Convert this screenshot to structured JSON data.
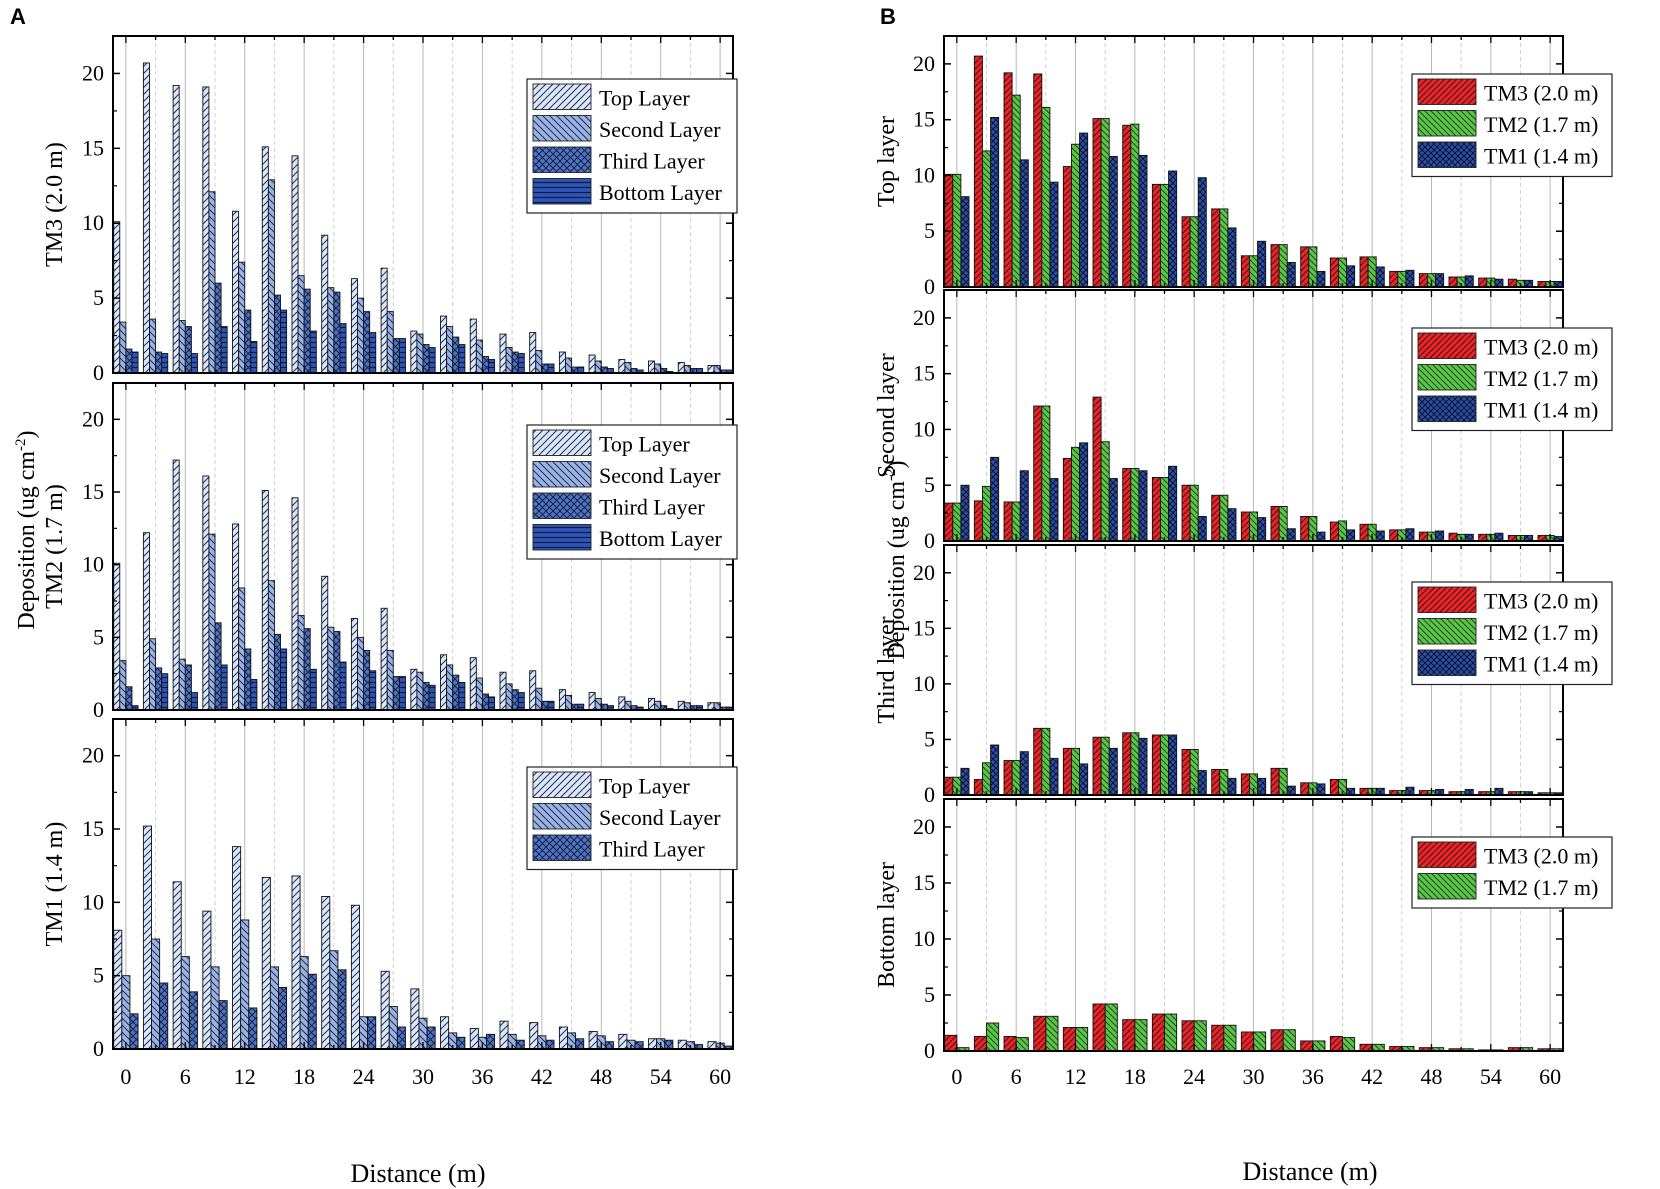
{
  "panels": [
    {
      "letter": "A",
      "ylabel_main": "Deposition (ug cm",
      "ylabel_sup": "-2",
      "ylabel_end": ")",
      "xlabel": "Distance (m)"
    },
    {
      "letter": "B",
      "ylabel_main": "Deposition (ug cm",
      "ylabel_sup": "-2",
      "ylabel_end": ")",
      "xlabel": "Distance (m)"
    }
  ],
  "chart_data": [
    {
      "type": "bar",
      "panel": "A",
      "xlabel": "Distance (m)",
      "xticks": [
        "0",
        "6",
        "12",
        "18",
        "24",
        "30",
        "36",
        "42",
        "48",
        "54",
        "60"
      ],
      "yticks": [
        "0",
        "5",
        "10",
        "15",
        "20"
      ],
      "categories": [
        0,
        3,
        6,
        9,
        12,
        15,
        18,
        21,
        24,
        27,
        30,
        33,
        36,
        39,
        42,
        45,
        48,
        51,
        54,
        57,
        60
      ],
      "colors": {
        "Top Layer": "#dce8f8",
        "Second Layer": "#9bb3e0",
        "Third Layer": "#4f74c4",
        "Bottom Layer": "#2d55b8"
      },
      "subplots": [
        {
          "ylabel": "TM3 (2.0 m)",
          "ylim": [
            0,
            22.5
          ],
          "series": [
            {
              "name": "Top Layer",
              "values": [
                10.1,
                20.7,
                19.2,
                19.1,
                10.8,
                15.1,
                14.5,
                9.2,
                6.3,
                7.0,
                2.8,
                3.8,
                3.6,
                2.6,
                2.7,
                1.4,
                1.2,
                0.9,
                0.8,
                0.7,
                0.5
              ]
            },
            {
              "name": "Second Layer",
              "values": [
                3.4,
                3.6,
                3.5,
                12.1,
                7.4,
                12.9,
                6.5,
                5.7,
                5.0,
                4.1,
                2.6,
                3.1,
                2.2,
                1.7,
                1.5,
                1.0,
                0.8,
                0.7,
                0.6,
                0.5,
                0.5
              ]
            },
            {
              "name": "Third Layer",
              "values": [
                1.6,
                1.4,
                3.1,
                6.0,
                4.2,
                5.2,
                5.6,
                5.4,
                4.1,
                2.3,
                1.9,
                2.4,
                1.1,
                1.4,
                0.6,
                0.4,
                0.4,
                0.3,
                0.3,
                0.3,
                0.2
              ]
            },
            {
              "name": "Bottom Layer",
              "values": [
                1.4,
                1.3,
                1.3,
                3.1,
                2.1,
                4.2,
                2.8,
                3.3,
                2.7,
                2.3,
                1.7,
                1.9,
                0.9,
                1.3,
                0.6,
                0.4,
                0.3,
                0.2,
                0.1,
                0.3,
                0.2
              ]
            }
          ],
          "legend": [
            "Top Layer",
            "Second Layer",
            "Third Layer",
            "Bottom Layer"
          ]
        },
        {
          "ylabel": "TM2 (1.7 m)",
          "ylim": [
            0,
            22.5
          ],
          "series": [
            {
              "name": "Top Layer",
              "values": [
                10.1,
                12.2,
                17.2,
                16.1,
                12.8,
                15.1,
                14.6,
                9.2,
                6.3,
                7.0,
                2.8,
                3.8,
                3.6,
                2.6,
                2.7,
                1.4,
                1.2,
                0.9,
                0.8,
                0.6,
                0.5
              ]
            },
            {
              "name": "Second Layer",
              "values": [
                3.4,
                4.9,
                3.5,
                12.1,
                8.4,
                8.9,
                6.5,
                5.7,
                5.0,
                4.1,
                2.6,
                3.1,
                2.2,
                1.8,
                1.5,
                1.0,
                0.8,
                0.6,
                0.6,
                0.5,
                0.5
              ]
            },
            {
              "name": "Third Layer",
              "values": [
                1.6,
                2.9,
                3.1,
                6.0,
                4.2,
                5.2,
                5.6,
                5.4,
                4.1,
                2.3,
                1.9,
                2.4,
                1.1,
                1.4,
                0.6,
                0.4,
                0.4,
                0.3,
                0.3,
                0.3,
                0.2
              ]
            },
            {
              "name": "Bottom Layer",
              "values": [
                0.3,
                2.5,
                1.2,
                3.1,
                2.1,
                4.2,
                2.8,
                3.3,
                2.7,
                2.3,
                1.7,
                1.9,
                0.9,
                1.2,
                0.6,
                0.4,
                0.3,
                0.2,
                0.1,
                0.3,
                0.2
              ]
            }
          ],
          "legend": [
            "Top Layer",
            "Second Layer",
            "Third Layer",
            "Bottom Layer"
          ]
        },
        {
          "ylabel": "TM1 (1.4 m)",
          "ylim": [
            0,
            22.5
          ],
          "series": [
            {
              "name": "Top Layer",
              "values": [
                8.1,
                15.2,
                11.4,
                9.4,
                13.8,
                11.7,
                11.8,
                10.4,
                9.8,
                5.3,
                4.1,
                2.2,
                1.4,
                1.9,
                1.8,
                1.5,
                1.2,
                1.0,
                0.7,
                0.6,
                0.5
              ]
            },
            {
              "name": "Second Layer",
              "values": [
                5.0,
                7.5,
                6.3,
                5.6,
                8.8,
                5.6,
                6.3,
                6.7,
                2.2,
                2.9,
                2.1,
                1.1,
                0.8,
                1.0,
                0.9,
                1.1,
                0.9,
                0.6,
                0.7,
                0.5,
                0.4
              ]
            },
            {
              "name": "Third Layer",
              "values": [
                2.4,
                4.5,
                3.9,
                3.3,
                2.8,
                4.2,
                5.1,
                5.4,
                2.2,
                1.5,
                1.5,
                0.8,
                1.0,
                0.6,
                0.6,
                0.7,
                0.5,
                0.5,
                0.6,
                0.3,
                0.2
              ]
            }
          ],
          "legend": [
            "Top Layer",
            "Second Layer",
            "Third Layer"
          ]
        }
      ]
    },
    {
      "type": "bar",
      "panel": "B",
      "xlabel": "Distance (m)",
      "xticks": [
        "0",
        "6",
        "12",
        "18",
        "24",
        "30",
        "36",
        "42",
        "48",
        "54",
        "60"
      ],
      "yticks": [
        "0",
        "5",
        "10",
        "15",
        "20"
      ],
      "categories": [
        0,
        3,
        6,
        9,
        12,
        15,
        18,
        21,
        24,
        27,
        30,
        33,
        36,
        39,
        42,
        45,
        48,
        51,
        54,
        57,
        60
      ],
      "colors": {
        "TM3 (2.0 m)": "#e8262a",
        "TM2 (1.7 m)": "#5cc64a",
        "TM1 (1.4 m)": "#2c4fa8"
      },
      "subplots": [
        {
          "ylabel": "Top layer",
          "ylim": [
            0,
            22.5
          ],
          "series": [
            {
              "name": "TM3 (2.0 m)",
              "values": [
                10.1,
                20.7,
                19.2,
                19.1,
                10.8,
                15.1,
                14.5,
                9.2,
                6.3,
                7.0,
                2.8,
                3.8,
                3.6,
                2.6,
                2.7,
                1.4,
                1.2,
                0.9,
                0.8,
                0.7,
                0.5
              ]
            },
            {
              "name": "TM2 (1.7 m)",
              "values": [
                10.1,
                12.2,
                17.2,
                16.1,
                12.8,
                15.1,
                14.6,
                9.2,
                6.3,
                7.0,
                2.8,
                3.8,
                3.6,
                2.6,
                2.7,
                1.4,
                1.2,
                0.9,
                0.8,
                0.6,
                0.5
              ]
            },
            {
              "name": "TM1 (1.4 m)",
              "values": [
                8.1,
                15.2,
                11.4,
                9.4,
                13.8,
                11.7,
                11.8,
                10.4,
                9.8,
                5.3,
                4.1,
                2.2,
                1.4,
                1.9,
                1.8,
                1.5,
                1.2,
                1.0,
                0.7,
                0.6,
                0.5
              ]
            }
          ],
          "legend": [
            "TM3 (2.0 m)",
            "TM2 (1.7 m)",
            "TM1 (1.4 m)"
          ]
        },
        {
          "ylabel": "Second layer",
          "ylim": [
            0,
            22.5
          ],
          "series": [
            {
              "name": "TM3 (2.0 m)",
              "values": [
                3.4,
                3.6,
                3.5,
                12.1,
                7.4,
                12.9,
                6.5,
                5.7,
                5.0,
                4.1,
                2.6,
                3.1,
                2.2,
                1.7,
                1.5,
                1.0,
                0.8,
                0.7,
                0.6,
                0.5,
                0.5
              ]
            },
            {
              "name": "TM2 (1.7 m)",
              "values": [
                3.4,
                4.9,
                3.5,
                12.1,
                8.4,
                8.9,
                6.5,
                5.7,
                5.0,
                4.1,
                2.6,
                3.1,
                2.2,
                1.8,
                1.5,
                1.0,
                0.8,
                0.6,
                0.6,
                0.5,
                0.5
              ]
            },
            {
              "name": "TM1 (1.4 m)",
              "values": [
                5.0,
                7.5,
                6.3,
                5.6,
                8.8,
                5.6,
                6.3,
                6.7,
                2.2,
                2.9,
                2.1,
                1.1,
                0.8,
                1.0,
                0.9,
                1.1,
                0.9,
                0.6,
                0.7,
                0.5,
                0.4
              ]
            }
          ],
          "legend": [
            "TM3 (2.0 m)",
            "TM2 (1.7 m)",
            "TM1 (1.4 m)"
          ]
        },
        {
          "ylabel": "Third layer",
          "ylim": [
            0,
            22.5
          ],
          "series": [
            {
              "name": "TM3 (2.0 m)",
              "values": [
                1.6,
                1.4,
                3.1,
                6.0,
                4.2,
                5.2,
                5.6,
                5.4,
                4.1,
                2.3,
                1.9,
                2.4,
                1.1,
                1.4,
                0.6,
                0.4,
                0.4,
                0.3,
                0.3,
                0.3,
                0.2
              ]
            },
            {
              "name": "TM2 (1.7 m)",
              "values": [
                1.6,
                2.9,
                3.1,
                6.0,
                4.2,
                5.2,
                5.6,
                5.4,
                4.1,
                2.3,
                1.9,
                2.4,
                1.1,
                1.4,
                0.6,
                0.4,
                0.4,
                0.3,
                0.3,
                0.3,
                0.2
              ]
            },
            {
              "name": "TM1 (1.4 m)",
              "values": [
                2.4,
                4.5,
                3.9,
                3.3,
                2.8,
                4.2,
                5.1,
                5.4,
                2.2,
                1.5,
                1.5,
                0.8,
                1.0,
                0.6,
                0.6,
                0.7,
                0.5,
                0.5,
                0.6,
                0.3,
                0.2
              ]
            }
          ],
          "legend": [
            "TM3 (2.0 m)",
            "TM2 (1.7 m)",
            "TM1 (1.4 m)"
          ]
        },
        {
          "ylabel": "Bottom  layer",
          "ylim": [
            0,
            22.5
          ],
          "series": [
            {
              "name": "TM3 (2.0 m)",
              "values": [
                1.4,
                1.3,
                1.3,
                3.1,
                2.1,
                4.2,
                2.8,
                3.3,
                2.7,
                2.3,
                1.7,
                1.9,
                0.9,
                1.3,
                0.6,
                0.4,
                0.3,
                0.2,
                0.1,
                0.3,
                0.2
              ]
            },
            {
              "name": "TM2 (1.7 m)",
              "values": [
                0.3,
                2.5,
                1.2,
                3.1,
                2.1,
                4.2,
                2.8,
                3.3,
                2.7,
                2.3,
                1.7,
                1.9,
                0.9,
                1.2,
                0.6,
                0.4,
                0.3,
                0.2,
                0.1,
                0.3,
                0.2
              ]
            }
          ],
          "legend": [
            "TM3 (2.0 m)",
            "TM2 (1.7 m)"
          ]
        }
      ]
    }
  ]
}
